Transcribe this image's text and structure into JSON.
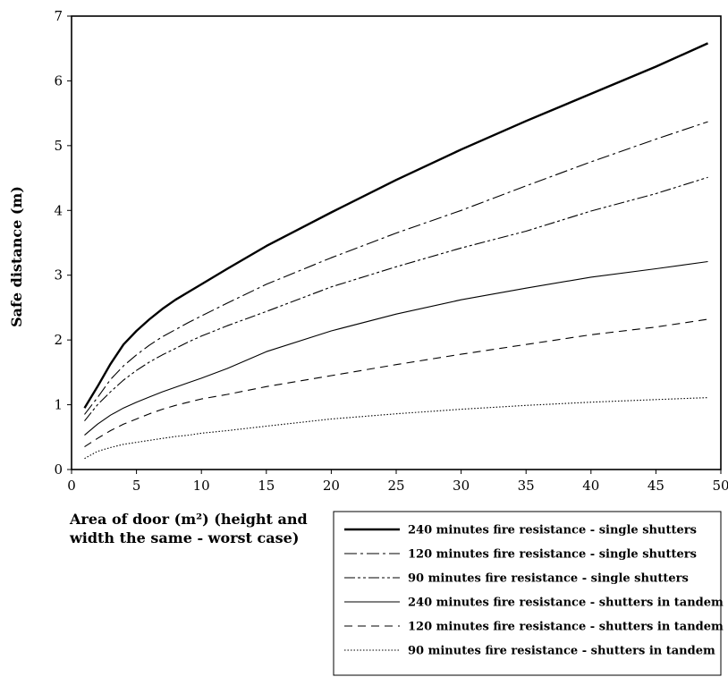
{
  "chart_data": {
    "type": "line",
    "title": "",
    "xlabel_lines": [
      "Area of door (m²) (height and",
      "width the same - worst case)"
    ],
    "ylabel": "Safe distance (m)",
    "xlim": [
      0,
      50
    ],
    "ylim": [
      0,
      7
    ],
    "xticks": [
      0,
      5,
      10,
      15,
      20,
      25,
      30,
      35,
      40,
      45,
      50
    ],
    "yticks": [
      0,
      1,
      2,
      3,
      4,
      5,
      6,
      7
    ],
    "grid": false,
    "legend_position": "bottom-right, below plot",
    "series": [
      {
        "name": "240 minutes fire resistance - single shutters",
        "style": "solid-thick",
        "x": [
          1,
          2,
          3,
          4,
          5,
          6,
          7,
          8,
          9,
          10,
          12,
          15,
          20,
          25,
          30,
          35,
          40,
          45,
          49
        ],
        "y": [
          0.95,
          1.28,
          1.63,
          1.93,
          2.14,
          2.32,
          2.48,
          2.62,
          2.74,
          2.86,
          3.1,
          3.45,
          3.97,
          4.47,
          4.94,
          5.38,
          5.8,
          6.22,
          6.58
        ]
      },
      {
        "name": "120 minutes fire resistance - single shutters",
        "style": "dash-dot",
        "x": [
          1,
          2,
          3,
          4,
          5,
          6,
          7,
          8,
          9,
          10,
          12,
          15,
          20,
          25,
          30,
          35,
          40,
          45,
          49
        ],
        "y": [
          0.85,
          1.11,
          1.39,
          1.6,
          1.77,
          1.92,
          2.05,
          2.16,
          2.27,
          2.37,
          2.57,
          2.86,
          3.27,
          3.65,
          4.0,
          4.38,
          4.75,
          5.1,
          5.37
        ]
      },
      {
        "name": "90 minutes fire resistance - single shutters",
        "style": "dash-dot-dot",
        "x": [
          1,
          2,
          3,
          4,
          5,
          6,
          7,
          8,
          9,
          10,
          12,
          15,
          20,
          25,
          30,
          35,
          40,
          45,
          49
        ],
        "y": [
          0.75,
          1.0,
          1.2,
          1.38,
          1.53,
          1.66,
          1.77,
          1.87,
          1.97,
          2.06,
          2.22,
          2.44,
          2.82,
          3.13,
          3.42,
          3.68,
          3.99,
          4.26,
          4.51
        ]
      },
      {
        "name": "240 minutes fire resistance - shutters in tandem",
        "style": "solid-thin",
        "x": [
          1,
          2,
          3,
          4,
          5,
          6,
          7,
          8,
          9,
          10,
          12,
          15,
          20,
          25,
          30,
          35,
          40,
          45,
          49
        ],
        "y": [
          0.53,
          0.7,
          0.84,
          0.95,
          1.04,
          1.12,
          1.2,
          1.27,
          1.34,
          1.41,
          1.56,
          1.82,
          2.14,
          2.4,
          2.62,
          2.8,
          2.97,
          3.1,
          3.21
        ]
      },
      {
        "name": "120 minutes fire resistance - shutters in tandem",
        "style": "dashed",
        "x": [
          1,
          2,
          3,
          4,
          5,
          6,
          7,
          8,
          9,
          10,
          12,
          15,
          20,
          25,
          30,
          35,
          40,
          45,
          49
        ],
        "y": [
          0.35,
          0.48,
          0.6,
          0.7,
          0.78,
          0.86,
          0.93,
          0.99,
          1.04,
          1.09,
          1.16,
          1.28,
          1.45,
          1.62,
          1.78,
          1.93,
          2.08,
          2.2,
          2.32
        ]
      },
      {
        "name": "90 minutes fire resistance - shutters in tandem",
        "style": "dotted",
        "x": [
          1,
          2,
          3,
          4,
          5,
          6,
          7,
          8,
          9,
          10,
          12,
          15,
          20,
          25,
          30,
          35,
          40,
          45,
          49
        ],
        "y": [
          0.17,
          0.28,
          0.34,
          0.39,
          0.42,
          0.45,
          0.48,
          0.51,
          0.53,
          0.56,
          0.6,
          0.67,
          0.78,
          0.86,
          0.93,
          0.99,
          1.04,
          1.08,
          1.11
        ]
      }
    ]
  }
}
